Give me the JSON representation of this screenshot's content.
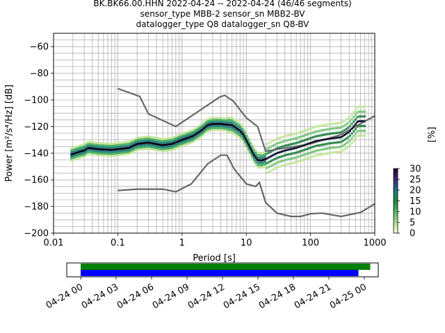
{
  "title": {
    "line1": "BK.BK66.00.HHN   2022-04-24 -- 2022-04-24  (46/46 segments)",
    "line2": "sensor_type MBB-2 sensor_sn MBB2-BV",
    "line3": "datalogger_type Q8 datalogger_sn Q8-BV"
  },
  "chart_data": [
    {
      "type": "heatmap",
      "xlabel": "Period [s]",
      "ylabel": "Power [m²/s⁴/Hz] [dB]",
      "xscale": "log",
      "xlim": [
        0.01,
        1000
      ],
      "ylim": [
        -200,
        -50
      ],
      "xticks": [
        "0.01",
        "0.1",
        "1",
        "10",
        "100",
        "1000"
      ],
      "yticks": [
        "−200",
        "−180",
        "−160",
        "−140",
        "−120",
        "−100",
        "−80",
        "−60"
      ],
      "grid": true,
      "colorbar": {
        "label": "[%]",
        "range": [
          0,
          30
        ],
        "ticks": [
          "0",
          "5",
          "10",
          "15",
          "20",
          "25",
          "30"
        ],
        "colormap": [
          "#ffffe0",
          "#c2e699",
          "#78c679",
          "#41ab5d",
          "#238443",
          "#1d7a7a",
          "#2c4a8a",
          "#3b1e5c",
          "#1a0a2e"
        ]
      },
      "series": [
        {
          "name": "",
          "color": "#000000",
          "x": [
            0.019,
            0.025,
            0.03,
            0.035,
            0.05,
            0.08,
            0.1,
            0.15,
            0.2,
            0.3,
            0.5,
            0.7,
            1.0,
            1.5,
            2.0,
            2.5,
            3.0,
            4.0,
            5.0,
            6.0,
            8.0,
            9.0,
            11.0,
            13.0,
            15.0,
            17.0,
            20.0,
            25.0,
            30.0,
            40.0,
            60.0,
            80.0,
            120.0,
            200.0,
            300.0,
            400.0,
            550.0,
            700.0
          ],
          "y": [
            -141,
            -139,
            -138,
            -136,
            -137,
            -137.5,
            -137,
            -136,
            -133,
            -132,
            -134,
            -133,
            -130,
            -127,
            -123,
            -119,
            -118,
            -118,
            -118.5,
            -119,
            -123,
            -126,
            -134,
            -141,
            -145,
            -145.5,
            -144.5,
            -142,
            -140,
            -138,
            -136,
            -134,
            -131,
            -129,
            -128,
            -124,
            -116,
            -116
          ]
        }
      ],
      "reference_curves": [
        {
          "name": "",
          "color": "#666666",
          "x": [
            0.1,
            0.22,
            0.3,
            0.8,
            3.8,
            4.6,
            6.3,
            10,
            15,
            20,
            100,
            300,
            1000
          ],
          "y": [
            -91.5,
            -97.4,
            -110.5,
            -120,
            -98,
            -96.5,
            -101,
            -113.5,
            -120,
            -138.5,
            -133,
            -126,
            -112
          ]
        },
        {
          "name": "",
          "color": "#666666",
          "x": [
            0.1,
            0.2,
            0.5,
            0.8,
            1.4,
            2.5,
            4.0,
            5.0,
            6.5,
            10,
            14,
            16,
            20,
            30,
            50,
            70,
            100,
            150,
            300,
            600,
            1000
          ],
          "y": [
            -168,
            -167,
            -167,
            -169,
            -163,
            -148,
            -141.5,
            -141.5,
            -152,
            -163,
            -165,
            -162,
            -177,
            -185,
            -187.5,
            -187.5,
            -185.5,
            -185,
            -187.5,
            -184.5,
            -178
          ]
        }
      ]
    },
    {
      "type": "timeline",
      "xticks": [
        "04-24 00",
        "04-24 03",
        "04-24 06",
        "04-24 09",
        "04-24 12",
        "04-24 15",
        "04-24 18",
        "04-24 21",
        "04-25 00"
      ],
      "series": [
        {
          "name": "",
          "color": "#008000",
          "start_hour": 0.0,
          "end_hour": 24.5
        },
        {
          "name": "",
          "color": "#0000ff",
          "start_hour": 0.0,
          "end_hour": 23.5
        }
      ]
    }
  ]
}
